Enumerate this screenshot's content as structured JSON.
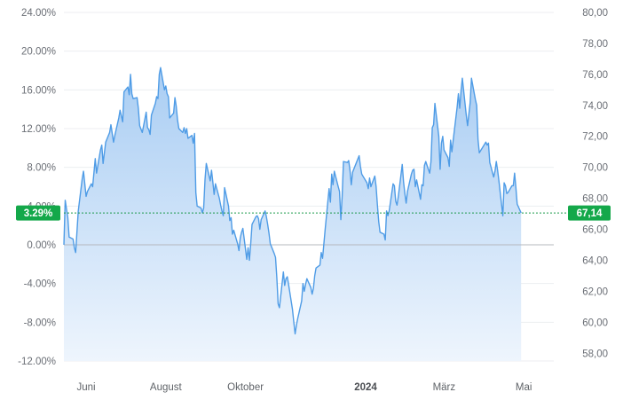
{
  "colors": {
    "line": "#4f9ce6",
    "fill_top": "#a9cdf3",
    "fill_bottom": "#eef5fd",
    "grid": "#eceef1",
    "zero_line": "#b5b8bd",
    "reference_line": "#1a9a4a",
    "badge_bg": "#14a84a"
  },
  "chart_data": {
    "type": "area",
    "y_left_axis": {
      "ticks": [
        "24.00%",
        "20.00%",
        "16.00%",
        "12.00%",
        "8.00%",
        "4.00%",
        "0.00%",
        "-4.00%",
        "-8.00%",
        "-12.00%"
      ],
      "range": [
        -12,
        24
      ]
    },
    "y_right_axis": {
      "ticks": [
        "80,00",
        "78,00",
        "76,00",
        "74,00",
        "72,00",
        "70,00",
        "68,00",
        "66,00",
        "64,00",
        "62,00",
        "60,00",
        "58,00"
      ],
      "range": [
        57.5,
        80
      ]
    },
    "x_axis": {
      "ticks": [
        "Juni",
        "August",
        "Oktober",
        "2024",
        "März",
        "Mai"
      ],
      "bold_ticks": [
        "2024"
      ],
      "range": [
        "2023-05-15",
        "2024-05-24"
      ]
    },
    "current": {
      "change_label": "3.29%",
      "price_label": "67,14",
      "change_pct": 3.29
    },
    "grid": true,
    "series": [
      {
        "points": [
          [
            "2023-05-15",
            0.0
          ],
          [
            "2023-05-16",
            4.6
          ],
          [
            "2023-05-18",
            2.8
          ],
          [
            "2023-05-19",
            0.8
          ],
          [
            "2023-05-22",
            0.6
          ],
          [
            "2023-05-23",
            -0.3
          ],
          [
            "2023-05-24",
            -0.8
          ],
          [
            "2023-05-26",
            3.5
          ],
          [
            "2023-05-29",
            6.8
          ],
          [
            "2023-05-30",
            7.6
          ],
          [
            "2023-06-01",
            5.0
          ],
          [
            "2023-06-02",
            5.5
          ],
          [
            "2023-06-05",
            6.3
          ],
          [
            "2023-06-06",
            6.0
          ],
          [
            "2023-06-08",
            8.9
          ],
          [
            "2023-06-09",
            7.4
          ],
          [
            "2023-06-12",
            9.8
          ],
          [
            "2023-06-13",
            10.3
          ],
          [
            "2023-06-14",
            8.4
          ],
          [
            "2023-06-16",
            10.6
          ],
          [
            "2023-06-19",
            11.6
          ],
          [
            "2023-06-20",
            12.4
          ],
          [
            "2023-06-22",
            10.6
          ],
          [
            "2023-06-23",
            11.3
          ],
          [
            "2023-06-26",
            13.1
          ],
          [
            "2023-06-27",
            13.9
          ],
          [
            "2023-06-29",
            12.7
          ],
          [
            "2023-06-30",
            15.8
          ],
          [
            "2023-07-03",
            16.3
          ],
          [
            "2023-07-04",
            15.5
          ],
          [
            "2023-07-05",
            17.6
          ],
          [
            "2023-07-06",
            15.6
          ],
          [
            "2023-07-07",
            15.1
          ],
          [
            "2023-07-10",
            15.2
          ],
          [
            "2023-07-11",
            14.1
          ],
          [
            "2023-07-12",
            12.3
          ],
          [
            "2023-07-14",
            11.6
          ],
          [
            "2023-07-17",
            13.7
          ],
          [
            "2023-07-18",
            12.1
          ],
          [
            "2023-07-19",
            11.9
          ],
          [
            "2023-07-20",
            11.4
          ],
          [
            "2023-07-21",
            13.4
          ],
          [
            "2023-07-24",
            14.6
          ],
          [
            "2023-07-25",
            15.3
          ],
          [
            "2023-07-26",
            15.1
          ],
          [
            "2023-07-27",
            17.6
          ],
          [
            "2023-07-28",
            18.3
          ],
          [
            "2023-07-31",
            16.0
          ],
          [
            "2023-08-01",
            16.4
          ],
          [
            "2023-08-02",
            15.6
          ],
          [
            "2023-08-03",
            15.3
          ],
          [
            "2023-08-04",
            13.1
          ],
          [
            "2023-08-07",
            13.6
          ],
          [
            "2023-08-08",
            15.2
          ],
          [
            "2023-08-09",
            14.3
          ],
          [
            "2023-08-10",
            12.9
          ],
          [
            "2023-08-11",
            12.0
          ],
          [
            "2023-08-14",
            11.6
          ],
          [
            "2023-08-15",
            12.1
          ],
          [
            "2023-08-16",
            11.5
          ],
          [
            "2023-08-17",
            12.0
          ],
          [
            "2023-08-18",
            11.0
          ],
          [
            "2023-08-21",
            11.3
          ],
          [
            "2023-08-22",
            10.5
          ],
          [
            "2023-08-23",
            11.5
          ],
          [
            "2023-08-24",
            5.4
          ],
          [
            "2023-08-25",
            4.0
          ],
          [
            "2023-08-28",
            3.8
          ],
          [
            "2023-08-29",
            3.3
          ],
          [
            "2023-08-30",
            3.8
          ],
          [
            "2023-08-31",
            6.7
          ],
          [
            "2023-09-01",
            8.4
          ],
          [
            "2023-09-04",
            6.6
          ],
          [
            "2023-09-05",
            7.7
          ],
          [
            "2023-09-06",
            6.5
          ],
          [
            "2023-09-07",
            5.2
          ],
          [
            "2023-09-08",
            6.3
          ],
          [
            "2023-09-11",
            4.8
          ],
          [
            "2023-09-12",
            4.1
          ],
          [
            "2023-09-13",
            3.5
          ],
          [
            "2023-09-14",
            3.0
          ],
          [
            "2023-09-15",
            5.9
          ],
          [
            "2023-09-18",
            4.0
          ],
          [
            "2023-09-19",
            2.5
          ],
          [
            "2023-09-20",
            2.8
          ],
          [
            "2023-09-21",
            1.1
          ],
          [
            "2023-09-22",
            1.5
          ],
          [
            "2023-09-25",
            0.1
          ],
          [
            "2023-09-26",
            -0.6
          ],
          [
            "2023-09-27",
            0.7
          ],
          [
            "2023-09-28",
            1.3
          ],
          [
            "2023-09-29",
            1.7
          ],
          [
            "2023-10-02",
            -1.5
          ],
          [
            "2023-10-03",
            -0.3
          ],
          [
            "2023-10-04",
            -1.6
          ],
          [
            "2023-10-05",
            0.1
          ],
          [
            "2023-10-06",
            2.1
          ],
          [
            "2023-10-09",
            2.9
          ],
          [
            "2023-10-10",
            3.0
          ],
          [
            "2023-10-11",
            2.7
          ],
          [
            "2023-10-12",
            1.6
          ],
          [
            "2023-10-13",
            2.6
          ],
          [
            "2023-10-16",
            3.5
          ],
          [
            "2023-10-17",
            2.9
          ],
          [
            "2023-10-18",
            2.1
          ],
          [
            "2023-10-19",
            1.2
          ],
          [
            "2023-10-20",
            0.1
          ],
          [
            "2023-10-23",
            -0.9
          ],
          [
            "2023-10-24",
            -1.3
          ],
          [
            "2023-10-25",
            -3.4
          ],
          [
            "2023-10-26",
            -6.1
          ],
          [
            "2023-10-27",
            -6.5
          ],
          [
            "2023-10-30",
            -2.8
          ],
          [
            "2023-10-31",
            -4.2
          ],
          [
            "2023-11-01",
            -3.5
          ],
          [
            "2023-11-02",
            -3.3
          ],
          [
            "2023-11-03",
            -4.1
          ],
          [
            "2023-11-06",
            -6.7
          ],
          [
            "2023-11-07",
            -8.0
          ],
          [
            "2023-11-08",
            -9.2
          ],
          [
            "2023-11-09",
            -8.3
          ],
          [
            "2023-11-10",
            -7.6
          ],
          [
            "2023-11-13",
            -5.8
          ],
          [
            "2023-11-14",
            -4.0
          ],
          [
            "2023-11-15",
            -4.8
          ],
          [
            "2023-11-16",
            -4.1
          ],
          [
            "2023-11-17",
            -3.5
          ],
          [
            "2023-11-20",
            -4.4
          ],
          [
            "2023-11-21",
            -5.1
          ],
          [
            "2023-11-22",
            -4.5
          ],
          [
            "2023-11-23",
            -3.2
          ],
          [
            "2023-11-24",
            -2.4
          ],
          [
            "2023-11-27",
            -2.1
          ],
          [
            "2023-11-28",
            -0.8
          ],
          [
            "2023-11-29",
            -1.4
          ],
          [
            "2023-11-30",
            0.1
          ],
          [
            "2023-12-01",
            1.6
          ],
          [
            "2023-12-04",
            5.8
          ],
          [
            "2023-12-05",
            4.4
          ],
          [
            "2023-12-06",
            7.3
          ],
          [
            "2023-12-07",
            6.2
          ],
          [
            "2023-12-08",
            7.6
          ],
          [
            "2023-12-11",
            6.0
          ],
          [
            "2023-12-12",
            5.5
          ],
          [
            "2023-12-13",
            2.6
          ],
          [
            "2023-12-14",
            5.0
          ],
          [
            "2023-12-15",
            8.6
          ],
          [
            "2023-12-18",
            8.5
          ],
          [
            "2023-12-19",
            8.7
          ],
          [
            "2023-12-20",
            7.7
          ],
          [
            "2023-12-21",
            6.2
          ],
          [
            "2023-12-22",
            7.5
          ],
          [
            "2023-12-27",
            9.2
          ],
          [
            "2023-12-28",
            8.1
          ],
          [
            "2023-12-29",
            7.3
          ],
          [
            "2024-01-02",
            6.4
          ],
          [
            "2024-01-03",
            5.8
          ],
          [
            "2024-01-04",
            6.9
          ],
          [
            "2024-01-05",
            6.0
          ],
          [
            "2024-01-08",
            7.1
          ],
          [
            "2024-01-09",
            6.0
          ],
          [
            "2024-01-10",
            4.1
          ],
          [
            "2024-01-11",
            2.4
          ],
          [
            "2024-01-12",
            1.3
          ],
          [
            "2024-01-15",
            1.1
          ],
          [
            "2024-01-16",
            0.5
          ],
          [
            "2024-01-17",
            3.5
          ],
          [
            "2024-01-18",
            3.0
          ],
          [
            "2024-01-19",
            3.5
          ],
          [
            "2024-01-22",
            6.3
          ],
          [
            "2024-01-23",
            6.1
          ],
          [
            "2024-01-24",
            4.5
          ],
          [
            "2024-01-25",
            4.1
          ],
          [
            "2024-01-26",
            5.0
          ],
          [
            "2024-01-29",
            8.3
          ],
          [
            "2024-01-30",
            6.5
          ],
          [
            "2024-01-31",
            5.3
          ],
          [
            "2024-02-01",
            4.3
          ],
          [
            "2024-02-02",
            5.5
          ],
          [
            "2024-02-05",
            7.3
          ],
          [
            "2024-02-06",
            7.7
          ],
          [
            "2024-02-07",
            7.8
          ],
          [
            "2024-02-08",
            6.0
          ],
          [
            "2024-02-09",
            6.7
          ],
          [
            "2024-02-12",
            4.7
          ],
          [
            "2024-02-13",
            6.2
          ],
          [
            "2024-02-14",
            6.1
          ],
          [
            "2024-02-15",
            8.2
          ],
          [
            "2024-02-16",
            8.6
          ],
          [
            "2024-02-19",
            7.4
          ],
          [
            "2024-02-20",
            8.6
          ],
          [
            "2024-02-21",
            12.1
          ],
          [
            "2024-02-22",
            12.4
          ],
          [
            "2024-02-23",
            14.6
          ],
          [
            "2024-02-26",
            11.2
          ],
          [
            "2024-02-27",
            7.8
          ],
          [
            "2024-02-28",
            10.5
          ],
          [
            "2024-02-29",
            11.2
          ],
          [
            "2024-03-01",
            9.8
          ],
          [
            "2024-03-04",
            9.0
          ],
          [
            "2024-03-05",
            8.1
          ],
          [
            "2024-03-06",
            10.8
          ],
          [
            "2024-03-07",
            9.6
          ],
          [
            "2024-03-08",
            10.8
          ],
          [
            "2024-03-11",
            14.2
          ],
          [
            "2024-03-12",
            15.6
          ],
          [
            "2024-03-13",
            14.1
          ],
          [
            "2024-03-14",
            15.9
          ],
          [
            "2024-03-15",
            17.2
          ],
          [
            "2024-03-18",
            13.4
          ],
          [
            "2024-03-19",
            12.3
          ],
          [
            "2024-03-20",
            13.5
          ],
          [
            "2024-03-21",
            14.7
          ],
          [
            "2024-03-22",
            17.2
          ],
          [
            "2024-03-25",
            15.0
          ],
          [
            "2024-03-26",
            14.4
          ],
          [
            "2024-03-27",
            10.9
          ],
          [
            "2024-03-28",
            9.5
          ],
          [
            "2024-04-02",
            10.6
          ],
          [
            "2024-04-03",
            10.3
          ],
          [
            "2024-04-04",
            10.5
          ],
          [
            "2024-04-05",
            8.5
          ],
          [
            "2024-04-08",
            7.0
          ],
          [
            "2024-04-09",
            7.6
          ],
          [
            "2024-04-10",
            8.6
          ],
          [
            "2024-04-11",
            7.7
          ],
          [
            "2024-04-12",
            6.6
          ],
          [
            "2024-04-15",
            3.0
          ],
          [
            "2024-04-16",
            6.4
          ],
          [
            "2024-04-17",
            6.1
          ],
          [
            "2024-04-18",
            5.3
          ],
          [
            "2024-04-19",
            5.4
          ],
          [
            "2024-04-22",
            6.1
          ],
          [
            "2024-04-23",
            6.1
          ],
          [
            "2024-04-24",
            7.4
          ],
          [
            "2024-04-25",
            5.9
          ],
          [
            "2024-04-26",
            4.2
          ],
          [
            "2024-04-29",
            3.29
          ]
        ]
      }
    ]
  }
}
